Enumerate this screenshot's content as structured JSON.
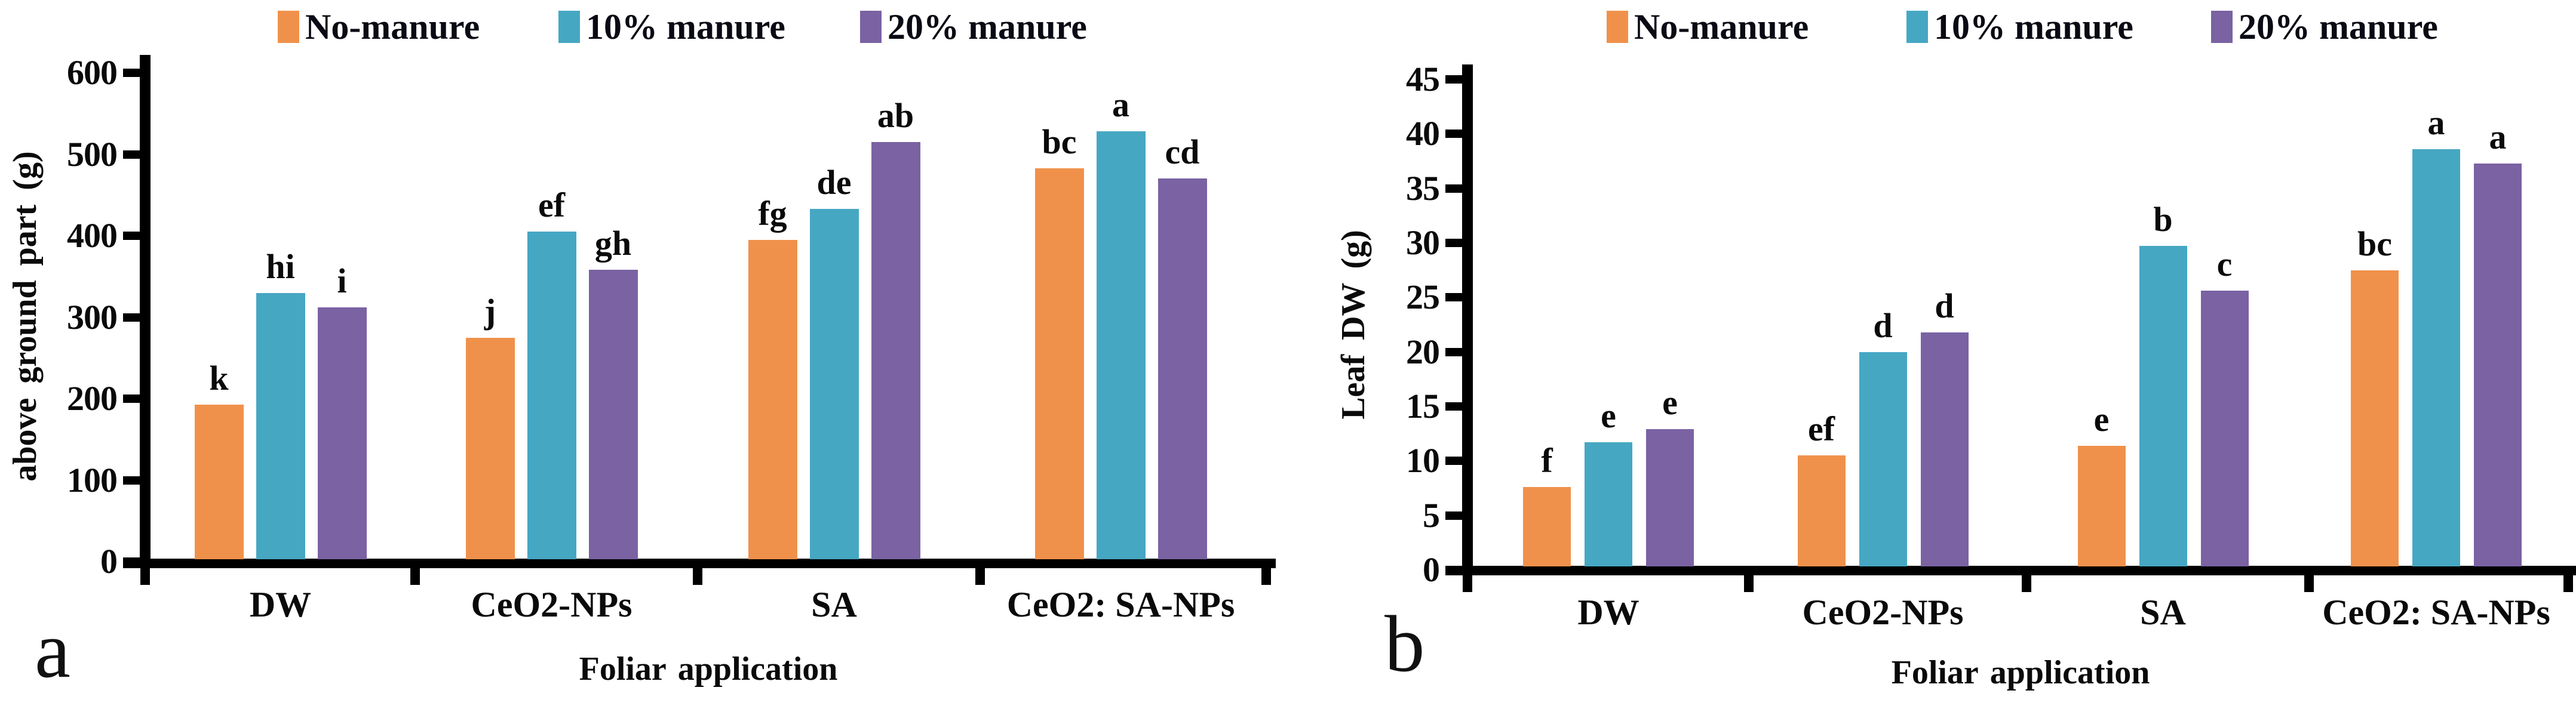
{
  "figure": {
    "panels": [
      "a",
      "b"
    ]
  },
  "chart_data": [
    {
      "type": "bar",
      "panel_label": "a",
      "title": "",
      "xlabel": "Foliar application",
      "ylabel": "above ground part (g)",
      "ylim": [
        0,
        600
      ],
      "ytick_step": 100,
      "grid": false,
      "legend_position": "top",
      "categories": [
        "DW",
        "CeO2-NPs",
        "SA",
        "CeO2: SA-NPs"
      ],
      "series": [
        {
          "name": "No-manure",
          "color": "#F0914B",
          "values": [
            193,
            275,
            395,
            483
          ],
          "sig_labels": [
            "k",
            "j",
            "fg",
            "bc"
          ]
        },
        {
          "name": "10% manure",
          "color": "#46A7C3",
          "values": [
            330,
            405,
            433,
            528
          ],
          "sig_labels": [
            "hi",
            "ef",
            "de",
            "a"
          ]
        },
        {
          "name": "20% manure",
          "color": "#7A62A3",
          "values": [
            312,
            358,
            515,
            470
          ],
          "sig_labels": [
            "i",
            "gh",
            "ab",
            "cd"
          ]
        }
      ]
    },
    {
      "type": "bar",
      "panel_label": "b",
      "title": "",
      "xlabel": "Foliar application",
      "ylabel": "Leaf DW (g)",
      "ylim": [
        0,
        45
      ],
      "ytick_step": 5,
      "grid": false,
      "legend_position": "top",
      "categories": [
        "DW",
        "CeO2-NPs",
        "SA",
        "CeO2: SA-NPs"
      ],
      "series": [
        {
          "name": "No-manure",
          "color": "#F0914B",
          "values": [
            7.6,
            10.5,
            11.4,
            27.5
          ],
          "sig_labels": [
            "f",
            "ef",
            "e",
            "bc"
          ]
        },
        {
          "name": "10% manure",
          "color": "#46A7C3",
          "values": [
            11.7,
            20.0,
            29.7,
            38.6
          ],
          "sig_labels": [
            "e",
            "d",
            "b",
            "a"
          ]
        },
        {
          "name": "20% manure",
          "color": "#7A62A3",
          "values": [
            12.9,
            21.8,
            25.6,
            37.3
          ],
          "sig_labels": [
            "e",
            "d",
            "c",
            "a"
          ]
        }
      ]
    }
  ]
}
